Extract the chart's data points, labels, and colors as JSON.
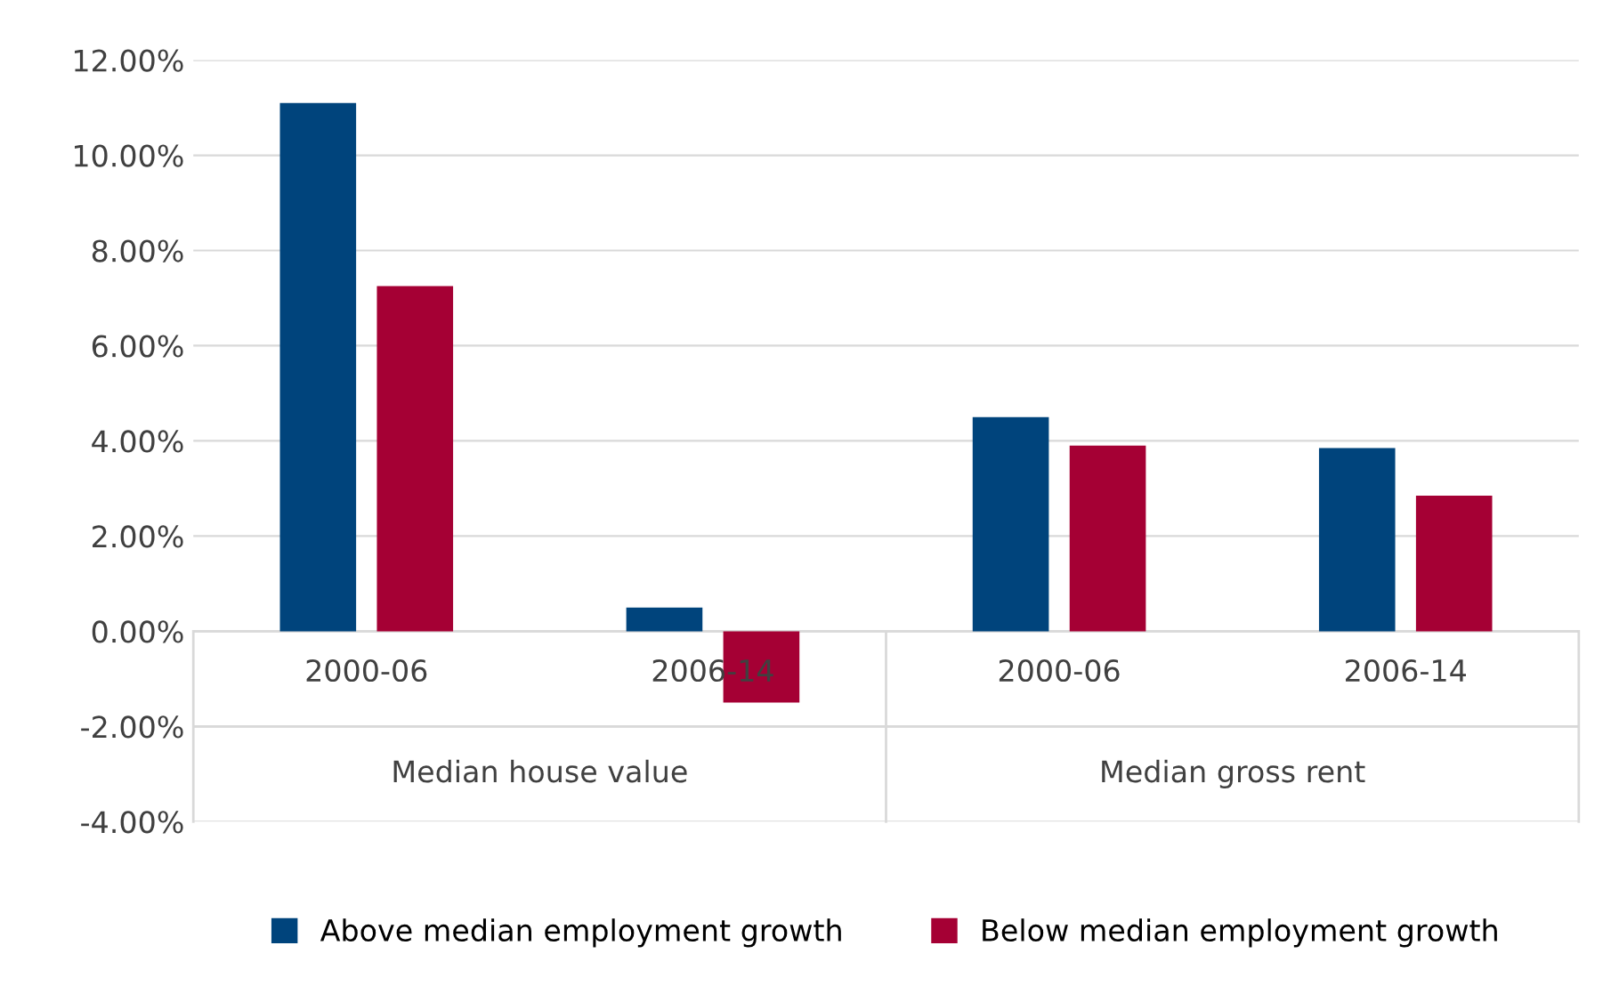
{
  "chart_data": {
    "type": "bar",
    "categories": [
      "2000-06",
      "2006-14",
      "2000-06",
      "2006-14"
    ],
    "series": [
      {
        "name": "Above median employment growth",
        "color": "#00447c",
        "values": [
          11.1,
          0.5,
          4.5,
          3.85
        ]
      },
      {
        "name": "Below median employment growth",
        "color": "#a50034",
        "values": [
          7.25,
          -1.5,
          3.9,
          2.85
        ]
      }
    ],
    "annotations": [
      "Median house value",
      "Median gross rent"
    ],
    "ylim": [
      -4,
      12
    ],
    "yticks": [
      {
        "value": -4,
        "label": "-4.00%"
      },
      {
        "value": -2,
        "label": "-2.00%"
      },
      {
        "value": 0,
        "label": "0.00%"
      },
      {
        "value": 2,
        "label": "2.00%"
      },
      {
        "value": 4,
        "label": "4.00%"
      },
      {
        "value": 6,
        "label": "6.00%"
      },
      {
        "value": 8,
        "label": "8.00%"
      },
      {
        "value": 10,
        "label": "10.00%"
      },
      {
        "value": 12,
        "label": "12.00%"
      }
    ],
    "grid": "y",
    "legend": "bottom"
  }
}
